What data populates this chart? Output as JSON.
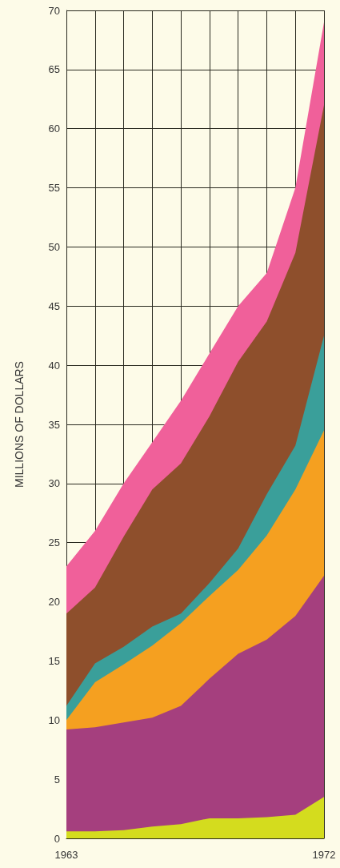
{
  "chart_data": {
    "type": "area",
    "stacked": true,
    "ylabel": "MILLIONS OF DOLLARS",
    "x": [
      1963,
      1964,
      1965,
      1966,
      1967,
      1968,
      1969,
      1970,
      1971,
      1972
    ],
    "xlim": [
      1963,
      1972
    ],
    "xticks": [
      1963,
      {
        "value": 1964,
        "label": null
      },
      {
        "value": 1965,
        "label": null
      },
      {
        "value": 1966,
        "label": null
      },
      {
        "value": 1967,
        "label": null
      },
      {
        "value": 1968,
        "label": null
      },
      {
        "value": 1969,
        "label": null
      },
      {
        "value": 1970,
        "label": null
      },
      {
        "value": 1971,
        "label": null
      },
      1972
    ],
    "ylim": [
      0,
      70
    ],
    "yticks": [
      0,
      5,
      10,
      15,
      20,
      25,
      30,
      35,
      40,
      45,
      50,
      55,
      60,
      65,
      70
    ],
    "grid": true,
    "legend": false,
    "series": [
      {
        "color": "#d4dc1e",
        "values": [
          0.6,
          0.6,
          0.7,
          1.0,
          1.2,
          1.7,
          1.7,
          1.8,
          2.0,
          3.5
        ]
      },
      {
        "color": "#a53f7e",
        "values": [
          8.6,
          8.8,
          9.1,
          9.2,
          10.0,
          11.8,
          13.9,
          15.0,
          16.8,
          18.7
        ]
      },
      {
        "color": "#f5a020",
        "values": [
          0.8,
          3.8,
          4.9,
          6.1,
          7.0,
          7.0,
          7.1,
          8.8,
          10.7,
          12.3
        ]
      },
      {
        "color": "#3a9f9a",
        "values": [
          1.2,
          1.6,
          1.5,
          1.6,
          0.8,
          1.1,
          1.8,
          3.5,
          3.7,
          8.0
        ]
      },
      {
        "color": "#8e4f2c",
        "values": [
          7.8,
          6.4,
          9.3,
          11.6,
          12.7,
          14.1,
          15.8,
          14.6,
          16.3,
          19.5
        ]
      },
      {
        "color": "#f0609a",
        "values": [
          4.0,
          4.8,
          4.5,
          4.0,
          5.3,
          5.3,
          4.7,
          4.1,
          5.5,
          7.0
        ]
      }
    ]
  }
}
